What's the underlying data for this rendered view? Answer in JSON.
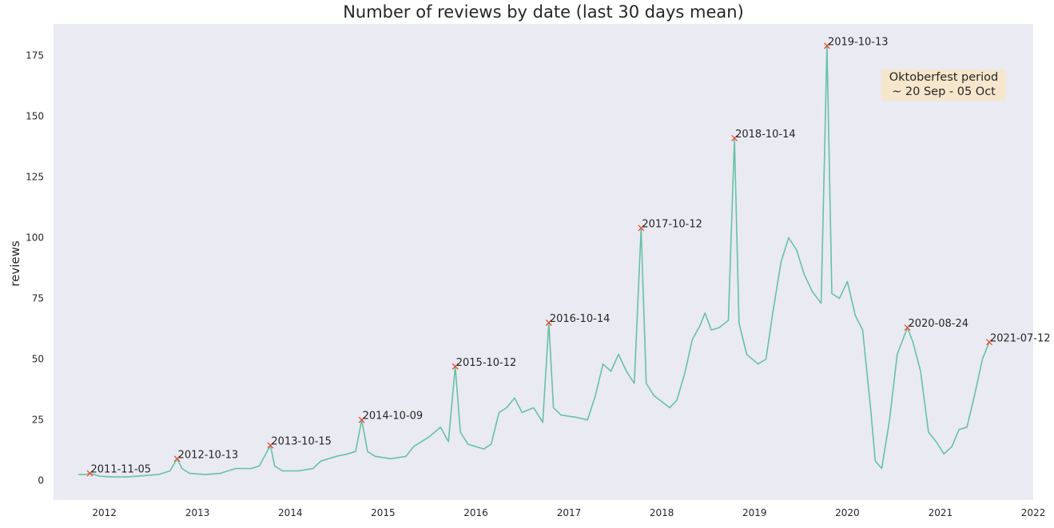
{
  "chart_data": {
    "type": "line",
    "title": "Number of reviews by date (last 30 days mean)",
    "xlabel": "",
    "ylabel": "reviews",
    "xlim": [
      "2011-06-15",
      "2022-01-01"
    ],
    "ylim": [
      -8,
      188
    ],
    "grid": false,
    "background": "#eaeaf2",
    "line_color": "#66c2a5",
    "marker_color": "#e24a33",
    "x_ticks": [
      "2012",
      "2013",
      "2014",
      "2015",
      "2016",
      "2017",
      "2018",
      "2019",
      "2020",
      "2021",
      "2022"
    ],
    "y_ticks": [
      0,
      25,
      50,
      75,
      100,
      125,
      150,
      175
    ],
    "series": [
      {
        "points": [
          [
            "2011-09-20",
            2.5
          ],
          [
            "2011-10-15",
            2.5
          ],
          [
            "2011-11-05",
            3
          ],
          [
            "2011-12-15",
            1.8
          ],
          [
            "2012-02-01",
            1.5
          ],
          [
            "2012-04-01",
            1.5
          ],
          [
            "2012-06-01",
            2
          ],
          [
            "2012-08-01",
            2.5
          ],
          [
            "2012-09-15",
            4
          ],
          [
            "2012-10-13",
            9
          ],
          [
            "2012-11-01",
            5
          ],
          [
            "2012-12-01",
            3
          ],
          [
            "2013-02-01",
            2.5
          ],
          [
            "2013-04-01",
            3
          ],
          [
            "2013-05-01",
            4
          ],
          [
            "2013-06-01",
            5
          ],
          [
            "2013-08-01",
            5
          ],
          [
            "2013-09-01",
            6
          ],
          [
            "2013-10-15",
            14.5
          ],
          [
            "2013-11-01",
            6
          ],
          [
            "2013-12-01",
            4
          ],
          [
            "2014-02-01",
            4
          ],
          [
            "2014-04-01",
            5
          ],
          [
            "2014-05-01",
            8
          ],
          [
            "2014-07-01",
            10
          ],
          [
            "2014-08-15",
            11
          ],
          [
            "2014-09-15",
            12
          ],
          [
            "2014-10-09",
            25
          ],
          [
            "2014-11-01",
            12
          ],
          [
            "2014-12-01",
            10
          ],
          [
            "2015-02-01",
            9
          ],
          [
            "2015-04-01",
            10
          ],
          [
            "2015-05-01",
            14
          ],
          [
            "2015-07-01",
            18
          ],
          [
            "2015-08-15",
            22
          ],
          [
            "2015-09-15",
            16
          ],
          [
            "2015-10-12",
            47
          ],
          [
            "2015-11-01",
            20
          ],
          [
            "2015-12-01",
            15
          ],
          [
            "2016-02-01",
            13
          ],
          [
            "2016-03-01",
            15
          ],
          [
            "2016-04-01",
            28
          ],
          [
            "2016-05-01",
            30
          ],
          [
            "2016-06-01",
            34
          ],
          [
            "2016-07-01",
            28
          ],
          [
            "2016-08-15",
            30
          ],
          [
            "2016-09-20",
            24
          ],
          [
            "2016-10-14",
            65
          ],
          [
            "2016-11-01",
            30
          ],
          [
            "2016-12-01",
            27
          ],
          [
            "2017-02-01",
            26
          ],
          [
            "2017-03-15",
            25
          ],
          [
            "2017-04-15",
            35
          ],
          [
            "2017-05-15",
            48
          ],
          [
            "2017-06-15",
            45
          ],
          [
            "2017-07-15",
            52
          ],
          [
            "2017-08-15",
            45
          ],
          [
            "2017-09-15",
            40
          ],
          [
            "2017-10-12",
            104
          ],
          [
            "2017-11-01",
            40
          ],
          [
            "2017-12-01",
            35
          ],
          [
            "2018-02-01",
            30
          ],
          [
            "2018-03-01",
            33
          ],
          [
            "2018-04-01",
            44
          ],
          [
            "2018-05-01",
            58
          ],
          [
            "2018-06-01",
            64
          ],
          [
            "2018-06-20",
            69
          ],
          [
            "2018-07-15",
            62
          ],
          [
            "2018-08-15",
            63
          ],
          [
            "2018-09-20",
            66
          ],
          [
            "2018-10-14",
            141
          ],
          [
            "2018-11-01",
            65
          ],
          [
            "2018-12-01",
            52
          ],
          [
            "2019-01-15",
            48
          ],
          [
            "2019-02-15",
            50
          ],
          [
            "2019-03-15",
            70
          ],
          [
            "2019-04-15",
            90
          ],
          [
            "2019-05-15",
            100
          ],
          [
            "2019-06-15",
            95
          ],
          [
            "2019-07-15",
            85
          ],
          [
            "2019-08-15",
            78
          ],
          [
            "2019-09-20",
            73
          ],
          [
            "2019-10-13",
            179
          ],
          [
            "2019-11-01",
            77
          ],
          [
            "2019-12-01",
            75
          ],
          [
            "2020-01-01",
            82
          ],
          [
            "2020-02-01",
            68
          ],
          [
            "2020-03-01",
            62
          ],
          [
            "2020-04-01",
            30
          ],
          [
            "2020-04-20",
            8
          ],
          [
            "2020-05-15",
            5
          ],
          [
            "2020-06-15",
            25
          ],
          [
            "2020-07-15",
            52
          ],
          [
            "2020-08-24",
            63
          ],
          [
            "2020-09-15",
            57
          ],
          [
            "2020-10-15",
            45
          ],
          [
            "2020-11-15",
            20
          ],
          [
            "2020-12-15",
            16
          ],
          [
            "2021-01-15",
            11
          ],
          [
            "2021-02-15",
            14
          ],
          [
            "2021-03-15",
            21
          ],
          [
            "2021-04-15",
            22
          ],
          [
            "2021-05-15",
            35
          ],
          [
            "2021-06-15",
            50
          ],
          [
            "2021-07-12",
            57
          ]
        ]
      }
    ],
    "peaks": [
      {
        "label": "2011-11-05",
        "x": "2011-11-05",
        "y": 3
      },
      {
        "label": "2012-10-13",
        "x": "2012-10-13",
        "y": 9
      },
      {
        "label": "2013-10-15",
        "x": "2013-10-15",
        "y": 14.5
      },
      {
        "label": "2014-10-09",
        "x": "2014-10-09",
        "y": 25
      },
      {
        "label": "2015-10-12",
        "x": "2015-10-12",
        "y": 47
      },
      {
        "label": "2016-10-14",
        "x": "2016-10-14",
        "y": 65
      },
      {
        "label": "2017-10-12",
        "x": "2017-10-12",
        "y": 104
      },
      {
        "label": "2018-10-14",
        "x": "2018-10-14",
        "y": 141
      },
      {
        "label": "2019-10-13",
        "x": "2019-10-13",
        "y": 179
      },
      {
        "label": "2020-08-24",
        "x": "2020-08-24",
        "y": 63
      },
      {
        "label": "2021-07-12",
        "x": "2021-07-12",
        "y": 57
      }
    ],
    "annotation": {
      "lines": [
        "Oktoberfest period",
        "~ 20 Sep - 05 Oct"
      ],
      "background": "#f5e6cc",
      "placement": "top-right"
    }
  }
}
